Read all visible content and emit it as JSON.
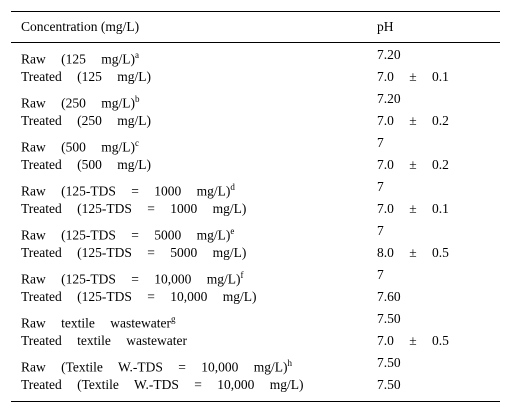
{
  "table": {
    "header": [
      "Concentration (mg/L)",
      "pH"
    ],
    "rows": [
      {
        "label": "Raw (125 mg/L)",
        "note": "a",
        "ph": "7.20"
      },
      {
        "label": "Treated (125 mg/L)",
        "ph": "7.0 ± 0.1"
      },
      {
        "label": "Raw (250 mg/L)",
        "note": "b",
        "ph": "7.20"
      },
      {
        "label": "Treated (250 mg/L)",
        "ph": "7.0 ± 0.2"
      },
      {
        "label": "Raw (500 mg/L)",
        "note": "c",
        "ph": "7"
      },
      {
        "label": "Treated (500 mg/L)",
        "ph": "7.0 ± 0.2"
      },
      {
        "label": "Raw (125-TDS = 1000 mg/L)",
        "note": "d",
        "ph": "7"
      },
      {
        "label": "Treated (125-TDS = 1000 mg/L)",
        "ph": "7.0 ± 0.1"
      },
      {
        "label": "Raw (125-TDS = 5000 mg/L)",
        "note": "e",
        "ph": "7"
      },
      {
        "label": "Treated (125-TDS = 5000 mg/L)",
        "ph": "8.0 ± 0.5"
      },
      {
        "label": "Raw (125-TDS = 10,000 mg/L)",
        "note": "f",
        "ph": "7"
      },
      {
        "label": "Treated (125-TDS = 10,000 mg/L)",
        "ph": "7.60"
      },
      {
        "label": "Raw textile wastewater",
        "note": "g",
        "ph": "7.50"
      },
      {
        "label": "Treated textile wastewater",
        "ph": "7.0 ± 0.5"
      },
      {
        "label": "Raw (Textile W.-TDS = 10,000 mg/L)",
        "note": "h",
        "ph": "7.50"
      },
      {
        "label": "Treated (Textile W.-TDS = 10,000 mg/L)",
        "ph": "7.50"
      }
    ]
  }
}
